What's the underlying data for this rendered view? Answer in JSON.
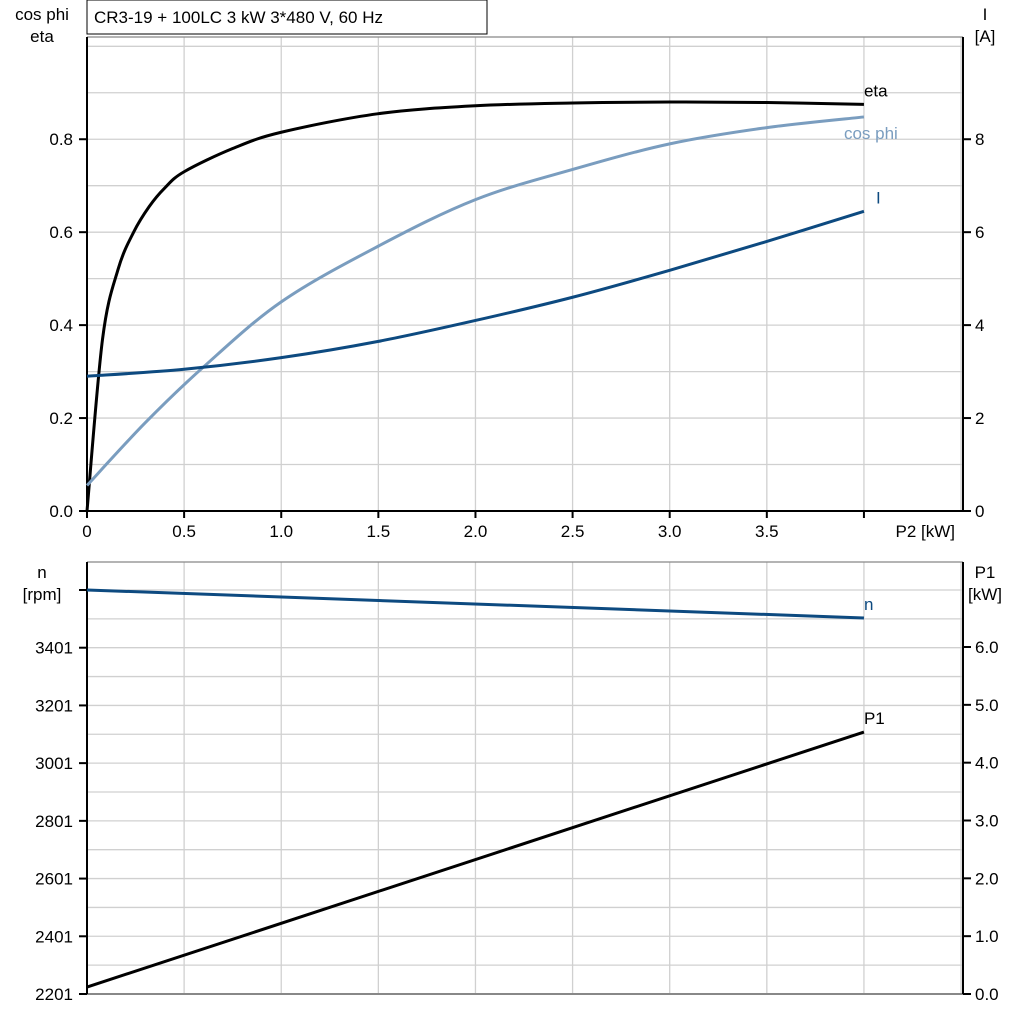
{
  "chart_data": [
    {
      "type": "line",
      "title": "CR3-19 + 100LC   3 kW   3*480 V, 60 Hz",
      "xlabel": "P2 [kW]",
      "ylabel_left": [
        "cos phi",
        "eta"
      ],
      "ylabel_right": [
        "I",
        "[A]"
      ],
      "xlim": [
        0,
        4.51
      ],
      "ylim_left": [
        0,
        1.02
      ],
      "ylim_right": [
        0,
        10.2
      ],
      "x_ticks": [
        "0",
        "0.5",
        "1.0",
        "1.5",
        "2.0",
        "2.5",
        "3.0",
        "3.5"
      ],
      "y_ticks_left": [
        "0.0",
        "0.2",
        "0.4",
        "0.6",
        "0.8"
      ],
      "y_ticks_right": [
        "0",
        "2",
        "4",
        "6",
        "8"
      ],
      "grid": true,
      "series": [
        {
          "name": "eta",
          "axis": "left",
          "color": "#000000",
          "x": [
            0,
            0.08,
            0.16,
            0.24,
            0.32,
            0.4,
            0.5,
            0.75,
            1.0,
            1.5,
            2.0,
            2.5,
            3.0,
            3.5,
            4.0
          ],
          "y": [
            0,
            0.37,
            0.52,
            0.6,
            0.655,
            0.695,
            0.73,
            0.78,
            0.815,
            0.855,
            0.872,
            0.878,
            0.88,
            0.879,
            0.875
          ]
        },
        {
          "name": "cos phi",
          "axis": "left",
          "color": "#7a9dbf",
          "x": [
            0,
            0.3,
            0.6,
            1.0,
            1.5,
            2.0,
            2.5,
            3.0,
            3.5,
            4.0
          ],
          "y": [
            0.055,
            0.19,
            0.31,
            0.45,
            0.57,
            0.67,
            0.735,
            0.79,
            0.825,
            0.848
          ]
        },
        {
          "name": "I",
          "axis": "right",
          "color": "#0d4a80",
          "x": [
            0,
            0.5,
            1.0,
            1.5,
            2.0,
            2.5,
            3.0,
            3.5,
            4.0
          ],
          "y": [
            2.9,
            3.05,
            3.3,
            3.65,
            4.1,
            4.6,
            5.18,
            5.8,
            6.45
          ]
        }
      ]
    },
    {
      "type": "line",
      "xlim": [
        0,
        4.51
      ],
      "ylabel_left": [
        "n",
        "[rpm]"
      ],
      "ylabel_right": [
        "P1",
        "[kW]"
      ],
      "ylim_left": [
        2201,
        3698
      ],
      "ylim_right": [
        0,
        7.47
      ],
      "y_ticks_left": [
        "2201",
        "2401",
        "2601",
        "2801",
        "3001",
        "3201",
        "3401"
      ],
      "y_ticks_right": [
        "0.0",
        "1.0",
        "2.0",
        "3.0",
        "4.0",
        "5.0",
        "6.0"
      ],
      "grid": true,
      "series": [
        {
          "name": "n",
          "axis": "left",
          "color": "#0d4a80",
          "x": [
            0,
            4.0
          ],
          "y": [
            3601,
            3504
          ]
        },
        {
          "name": "P1",
          "axis": "right",
          "color": "#000000",
          "x": [
            0,
            4.0
          ],
          "y": [
            0.12,
            4.53
          ]
        }
      ]
    }
  ]
}
